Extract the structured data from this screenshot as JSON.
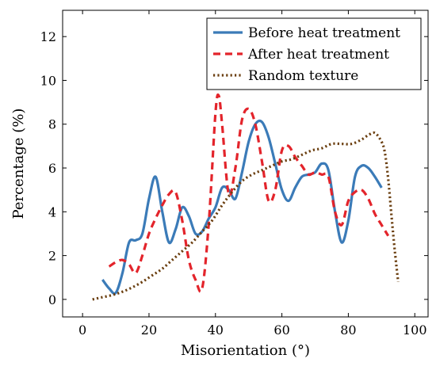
{
  "chart_data": {
    "type": "line",
    "title": "",
    "xlabel": "Misorientation (°)",
    "ylabel": "Percentage (%)",
    "xlim": [
      -6,
      104
    ],
    "ylim": [
      -0.8,
      13.2
    ],
    "xticks": [
      0,
      20,
      40,
      60,
      80,
      100
    ],
    "yticks": [
      0,
      2,
      4,
      6,
      8,
      10,
      12
    ],
    "grid": false,
    "legend_position": "top-right",
    "series": [
      {
        "name": "Before heat treatment",
        "color": "#3b7bb8",
        "style": "solid",
        "x": [
          6,
          8,
          10,
          12,
          14,
          16,
          18,
          20,
          22,
          24,
          26,
          28,
          30,
          32,
          34,
          36,
          38,
          40,
          42,
          44,
          46,
          48,
          50,
          52,
          54,
          56,
          58,
          60,
          62,
          64,
          66,
          68,
          70,
          72,
          74,
          76,
          78,
          80,
          82,
          84,
          86,
          88,
          90
        ],
        "y": [
          0.9,
          0.5,
          0.3,
          1.2,
          2.6,
          2.7,
          3.0,
          4.6,
          5.6,
          4.0,
          2.6,
          3.2,
          4.2,
          3.8,
          3.0,
          3.1,
          3.7,
          4.2,
          5.1,
          5.0,
          4.6,
          5.8,
          7.2,
          8.0,
          8.1,
          7.4,
          6.2,
          5.0,
          4.5,
          5.1,
          5.6,
          5.7,
          5.8,
          6.2,
          5.9,
          4.0,
          2.6,
          3.6,
          5.6,
          6.1,
          6.0,
          5.6,
          5.1
        ]
      },
      {
        "name": "After heat treatment",
        "color": "#e3242b",
        "style": "dashed",
        "x": [
          8,
          10,
          12,
          14,
          16,
          18,
          20,
          22,
          24,
          26,
          28,
          30,
          32,
          34,
          36,
          38,
          40,
          41,
          42,
          44,
          46,
          48,
          50,
          52,
          54,
          56,
          58,
          60,
          62,
          64,
          66,
          68,
          70,
          72,
          74,
          76,
          78,
          80,
          82,
          84,
          86,
          88,
          90,
          92
        ],
        "y": [
          1.5,
          1.7,
          1.8,
          1.6,
          1.2,
          2.0,
          3.0,
          3.7,
          4.3,
          4.8,
          4.9,
          3.6,
          1.8,
          0.9,
          0.5,
          3.5,
          8.5,
          9.3,
          8.0,
          4.8,
          6.0,
          8.2,
          8.7,
          8.0,
          6.3,
          4.5,
          5.0,
          6.8,
          7.0,
          6.5,
          6.1,
          5.7,
          5.8,
          5.7,
          5.6,
          4.0,
          3.4,
          4.5,
          4.9,
          5.0,
          4.6,
          3.9,
          3.4,
          2.9
        ]
      },
      {
        "name": "Random texture",
        "color": "#6b3f10",
        "style": "dotted",
        "x": [
          3,
          6,
          9,
          12,
          15,
          18,
          21,
          24,
          27,
          30,
          33,
          36,
          39,
          42,
          45,
          48,
          51,
          54,
          57,
          60,
          63,
          66,
          69,
          72,
          75,
          78,
          81,
          84,
          86,
          88,
          90,
          91,
          92,
          93,
          94,
          95
        ],
        "y": [
          0.0,
          0.1,
          0.2,
          0.35,
          0.55,
          0.8,
          1.1,
          1.4,
          1.8,
          2.2,
          2.6,
          3.1,
          3.6,
          4.3,
          4.9,
          5.4,
          5.7,
          5.9,
          6.1,
          6.3,
          6.4,
          6.6,
          6.8,
          6.9,
          7.1,
          7.1,
          7.1,
          7.3,
          7.5,
          7.6,
          7.2,
          6.7,
          5.5,
          3.8,
          2.2,
          0.8
        ]
      }
    ]
  }
}
